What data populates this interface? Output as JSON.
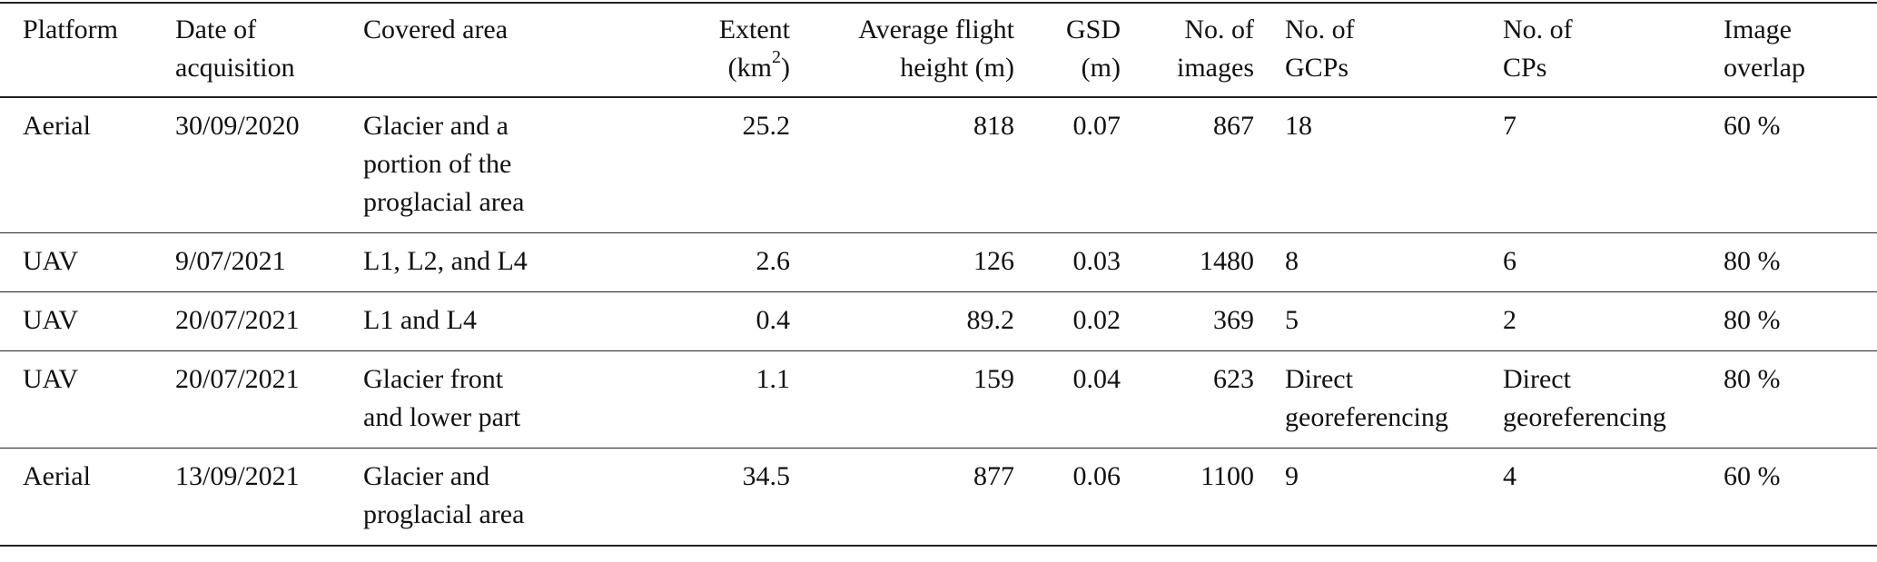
{
  "table": {
    "headers": [
      [
        "Platform"
      ],
      [
        "Date of",
        "acquisition"
      ],
      [
        "Covered area"
      ],
      [
        "Extent",
        "(km",
        "2",
        ")"
      ],
      [
        "Average flight",
        "height (m)"
      ],
      [
        "GSD",
        "(m)"
      ],
      [
        "No. of",
        "images"
      ],
      [
        "No. of",
        "GCPs"
      ],
      [
        "No. of",
        "CPs"
      ],
      [
        "Image",
        "overlap"
      ]
    ],
    "rows": [
      {
        "platform": "Aerial",
        "date": "30/09/2020",
        "area": [
          "Glacier and a",
          "portion of the",
          "proglacial area"
        ],
        "extent": "25.2",
        "height": "818",
        "gsd": "0.07",
        "images": "867",
        "gcps": [
          "18"
        ],
        "cps": [
          "7"
        ],
        "overlap": "60 %"
      },
      {
        "platform": "UAV",
        "date": "9/07/2021",
        "area": [
          "L1, L2, and L4"
        ],
        "extent": "2.6",
        "height": "126",
        "gsd": "0.03",
        "images": "1480",
        "gcps": [
          "8"
        ],
        "cps": [
          "6"
        ],
        "overlap": "80 %"
      },
      {
        "platform": "UAV",
        "date": "20/07/2021",
        "area": [
          "L1 and L4"
        ],
        "extent": "0.4",
        "height": "89.2",
        "gsd": "0.02",
        "images": "369",
        "gcps": [
          "5"
        ],
        "cps": [
          "2"
        ],
        "overlap": "80 %"
      },
      {
        "platform": "UAV",
        "date": "20/07/2021",
        "area": [
          "Glacier front",
          "and lower part"
        ],
        "extent": "1.1",
        "height": "159",
        "gsd": "0.04",
        "images": "623",
        "gcps": [
          "Direct",
          "georeferencing"
        ],
        "cps": [
          "Direct",
          "georeferencing"
        ],
        "overlap": "80 %"
      },
      {
        "platform": "Aerial",
        "date": "13/09/2021",
        "area": [
          "Glacier and",
          "proglacial area"
        ],
        "extent": "34.5",
        "height": "877",
        "gsd": "0.06",
        "images": "1100",
        "gcps": [
          "9"
        ],
        "cps": [
          "4"
        ],
        "overlap": "60 %"
      }
    ]
  }
}
